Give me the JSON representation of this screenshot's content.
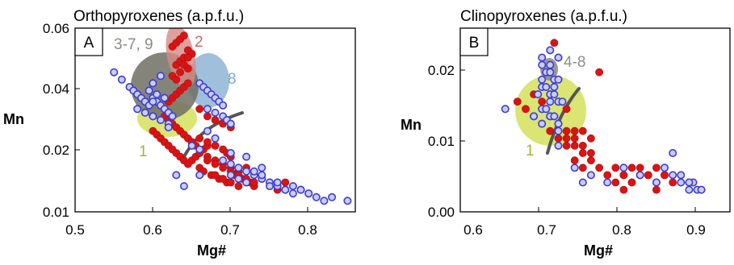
{
  "colors": {
    "red_points": "#d81414",
    "blue_points_fill": "#c9cdfa",
    "blue_points_stroke": "#3a3cd0",
    "field_1": "#d3e15a",
    "field_grey": "#6f6f64",
    "field_2": "#d88a86",
    "field_8": "#7fa9cf",
    "field_4_8": "#8e8e8e",
    "curve": "#555555"
  },
  "chart_data": [
    {
      "type": "scatter",
      "panel": "A",
      "title": "Orthopyroxenes (a.p.f.u.)",
      "xlabel": "Mg#",
      "ylabel": "Mn",
      "xlim": [
        0.5,
        0.86
      ],
      "ylim": [
        0.01,
        0.06
      ],
      "xticks": [
        "0.5",
        "0.6",
        "0.7",
        "0.8"
      ],
      "yticks": [
        "0.01",
        "0.02",
        "0.04",
        "0.06"
      ],
      "grid": false,
      "field_labels": [
        {
          "text": "3-7, 9",
          "color": "#8a8a84"
        },
        {
          "text": "2",
          "color": "#c36a68"
        },
        {
          "text": "8",
          "color": "#7fa9cf"
        },
        {
          "text": "1",
          "color": "#a7b23a"
        }
      ],
      "series": [
        {
          "marker": "red-filled-circle",
          "x": [
            0.6,
            0.605,
            0.61,
            0.615,
            0.62,
            0.625,
            0.63,
            0.635,
            0.64,
            0.645,
            0.65,
            0.655,
            0.66,
            0.665,
            0.67,
            0.615,
            0.62,
            0.625,
            0.63,
            0.635,
            0.64,
            0.645,
            0.65,
            0.655,
            0.62,
            0.625,
            0.63,
            0.635,
            0.64,
            0.645,
            0.63,
            0.635,
            0.64,
            0.645,
            0.625,
            0.63,
            0.635,
            0.64,
            0.645,
            0.65,
            0.625,
            0.63,
            0.635,
            0.64,
            0.645,
            0.66,
            0.67,
            0.68,
            0.69,
            0.7,
            0.71,
            0.72,
            0.66,
            0.665,
            0.675,
            0.685,
            0.695,
            0.705,
            0.715,
            0.725,
            0.68,
            0.69,
            0.7,
            0.71,
            0.72,
            0.73,
            0.74,
            0.75,
            0.76,
            0.77,
            0.78,
            0.79,
            0.67,
            0.68,
            0.69,
            0.7,
            0.71,
            0.72,
            0.73,
            0.74,
            0.75,
            0.76,
            0.77,
            0.66,
            0.67,
            0.68,
            0.69,
            0.695,
            0.7,
            0.68,
            0.69,
            0.7,
            0.66,
            0.67,
            0.69
          ],
          "y": [
            0.032,
            0.031,
            0.03,
            0.029,
            0.028,
            0.027,
            0.026,
            0.025,
            0.024,
            0.023,
            0.024,
            0.025,
            0.026,
            0.027,
            0.028,
            0.036,
            0.035,
            0.034,
            0.033,
            0.032,
            0.031,
            0.03,
            0.029,
            0.028,
            0.04,
            0.041,
            0.042,
            0.043,
            0.044,
            0.045,
            0.05,
            0.051,
            0.052,
            0.049,
            0.055,
            0.056,
            0.057,
            0.058,
            0.054,
            0.053,
            0.047,
            0.046,
            0.048,
            0.05,
            0.052,
            0.026,
            0.025,
            0.024,
            0.023,
            0.022,
            0.021,
            0.022,
            0.022,
            0.021,
            0.02,
            0.019,
            0.018,
            0.02,
            0.019,
            0.018,
            0.02,
            0.019,
            0.018,
            0.017,
            0.018,
            0.017,
            0.019,
            0.018,
            0.017,
            0.016,
            0.017,
            0.016,
            0.024,
            0.023,
            0.022,
            0.021,
            0.02,
            0.019,
            0.018,
            0.019,
            0.017,
            0.016,
            0.018,
            0.03,
            0.029,
            0.028,
            0.027,
            0.026,
            0.025,
            0.035,
            0.034,
            0.033,
            0.038,
            0.036,
            0.039
          ]
        },
        {
          "marker": "blue-open-circle",
          "x": [
            0.55,
            0.56,
            0.57,
            0.575,
            0.58,
            0.585,
            0.59,
            0.595,
            0.6,
            0.605,
            0.61,
            0.615,
            0.62,
            0.625,
            0.58,
            0.59,
            0.6,
            0.61,
            0.62,
            0.595,
            0.605,
            0.615,
            0.66,
            0.665,
            0.67,
            0.675,
            0.68,
            0.685,
            0.69,
            0.67,
            0.68,
            0.69,
            0.695,
            0.7,
            0.7,
            0.71,
            0.72,
            0.73,
            0.74,
            0.75,
            0.76,
            0.77,
            0.78,
            0.79,
            0.8,
            0.81,
            0.82,
            0.83,
            0.85,
            0.69,
            0.7,
            0.71,
            0.72,
            0.73,
            0.74,
            0.75,
            0.76,
            0.77,
            0.78,
            0.79,
            0.8,
            0.65,
            0.66,
            0.68,
            0.7,
            0.72,
            0.74,
            0.63,
            0.64,
            0.66,
            0.67,
            0.6,
            0.61,
            0.62,
            0.6
          ],
          "y": [
            0.048,
            0.046,
            0.044,
            0.043,
            0.042,
            0.041,
            0.04,
            0.039,
            0.041,
            0.04,
            0.039,
            0.038,
            0.037,
            0.036,
            0.038,
            0.037,
            0.036,
            0.035,
            0.034,
            0.043,
            0.042,
            0.041,
            0.045,
            0.044,
            0.043,
            0.042,
            0.041,
            0.04,
            0.039,
            0.038,
            0.037,
            0.036,
            0.035,
            0.034,
            0.023,
            0.022,
            0.021,
            0.02,
            0.019,
            0.018,
            0.017,
            0.016,
            0.017,
            0.016,
            0.015,
            0.014,
            0.013,
            0.014,
            0.013,
            0.024,
            0.02,
            0.019,
            0.018,
            0.021,
            0.02,
            0.017,
            0.018,
            0.016,
            0.015,
            0.016,
            0.015,
            0.028,
            0.027,
            0.03,
            0.026,
            0.025,
            0.022,
            0.02,
            0.017,
            0.02,
            0.032,
            0.045,
            0.047,
            0.033,
            0.04
          ]
        }
      ]
    },
    {
      "type": "scatter",
      "panel": "B",
      "title": "Clinopyroxenes (a.p.f.u.)",
      "xlabel": "Mg#",
      "ylabel": "Mn",
      "xlim": [
        0.6,
        0.93
      ],
      "ylim": [
        0.0,
        0.025
      ],
      "xticks": [
        "0.6",
        "0.7",
        "0.8",
        "0.9"
      ],
      "yticks": [
        "0.00",
        "0.01",
        "0.02"
      ],
      "grid": false,
      "field_labels": [
        {
          "text": "4-8",
          "color": "#8e8e8e"
        },
        {
          "text": "1",
          "color": "#a7b23a"
        }
      ],
      "series": [
        {
          "marker": "red-filled-circle",
          "x": [
            0.67,
            0.68,
            0.69,
            0.7,
            0.71,
            0.72,
            0.73,
            0.69,
            0.7,
            0.71,
            0.72,
            0.73,
            0.74,
            0.75,
            0.76,
            0.7,
            0.71,
            0.72,
            0.73,
            0.74,
            0.75,
            0.74,
            0.75,
            0.76,
            0.77,
            0.78,
            0.79,
            0.8,
            0.81,
            0.82,
            0.83,
            0.84,
            0.85,
            0.86,
            0.79,
            0.8,
            0.81,
            0.82,
            0.83,
            0.84,
            0.85,
            0.8,
            0.81,
            0.82,
            0.84,
            0.715,
            0.72,
            0.77,
            0.76,
            0.73,
            0.74,
            0.75
          ],
          "y": [
            0.015,
            0.014,
            0.013,
            0.014,
            0.013,
            0.012,
            0.011,
            0.016,
            0.015,
            0.016,
            0.015,
            0.014,
            0.01,
            0.011,
            0.01,
            0.012,
            0.011,
            0.01,
            0.009,
            0.009,
            0.008,
            0.007,
            0.006,
            0.007,
            0.006,
            0.005,
            0.006,
            0.005,
            0.006,
            0.005,
            0.005,
            0.006,
            0.005,
            0.004,
            0.004,
            0.005,
            0.004,
            0.006,
            0.005,
            0.004,
            0.005,
            0.003,
            0.004,
            0.005,
            0.003,
            0.023,
            0.021,
            0.019,
            0.008,
            0.01,
            0.011,
            0.009
          ]
        },
        {
          "marker": "blue-open-circle",
          "x": [
            0.655,
            0.7,
            0.705,
            0.71,
            0.715,
            0.72,
            0.7,
            0.705,
            0.71,
            0.715,
            0.72,
            0.725,
            0.7,
            0.705,
            0.71,
            0.715,
            0.72,
            0.695,
            0.7,
            0.71,
            0.715,
            0.72,
            0.69,
            0.7,
            0.71,
            0.72,
            0.7,
            0.71,
            0.75,
            0.8,
            0.82,
            0.84,
            0.85,
            0.86,
            0.87,
            0.88,
            0.885,
            0.89,
            0.895,
            0.88,
            0.87,
            0.86,
            0.74,
            0.76,
            0.78,
            0.72
          ],
          "y": [
            0.014,
            0.02,
            0.019,
            0.019,
            0.018,
            0.018,
            0.017,
            0.017,
            0.016,
            0.016,
            0.015,
            0.015,
            0.014,
            0.014,
            0.013,
            0.013,
            0.012,
            0.016,
            0.018,
            0.02,
            0.017,
            0.021,
            0.013,
            0.012,
            0.015,
            0.011,
            0.021,
            0.022,
            0.004,
            0.006,
            0.005,
            0.004,
            0.006,
            0.005,
            0.004,
            0.003,
            0.004,
            0.003,
            0.003,
            0.004,
            0.005,
            0.008,
            0.006,
            0.005,
            0.004,
            0.009
          ]
        }
      ]
    }
  ]
}
